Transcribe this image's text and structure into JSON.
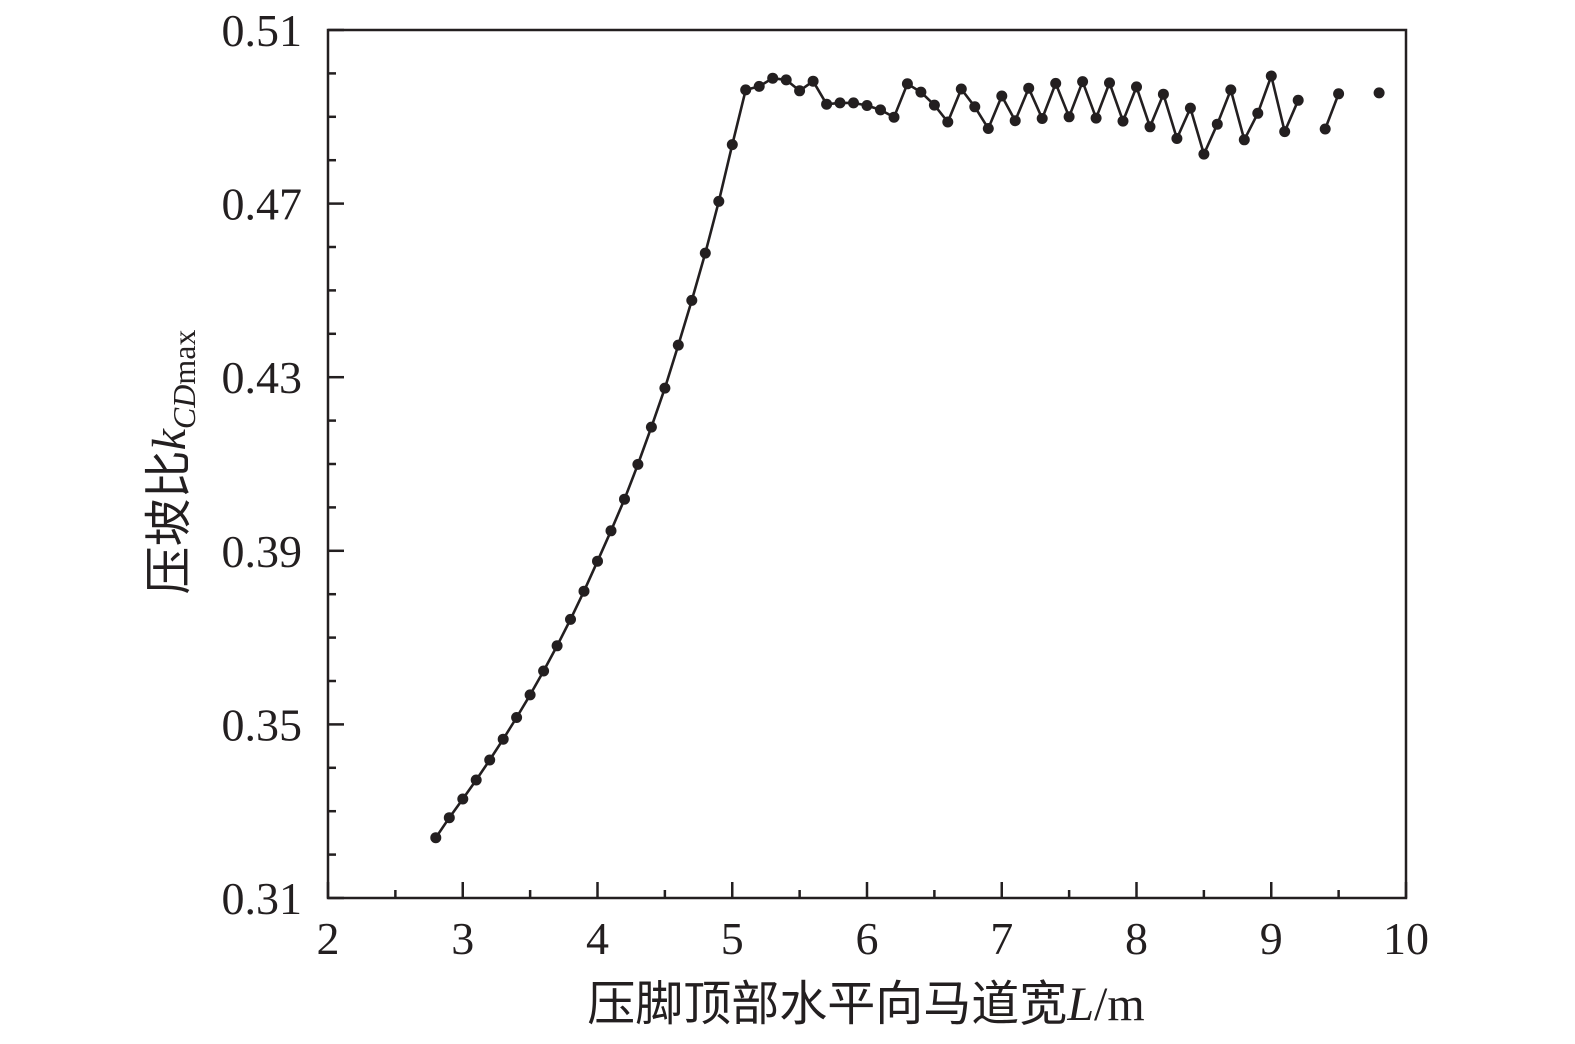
{
  "chart_data": {
    "type": "line",
    "xlabel": {
      "prefix": "压脚顶部水平向马道宽",
      "var": "L",
      "suffix": "/m"
    },
    "ylabel": {
      "prefix": "压坡比",
      "var": "k",
      "sub": "CD",
      "sub2": "max"
    },
    "xlim": [
      2,
      10
    ],
    "ylim": [
      0.31,
      0.51
    ],
    "xticks": [
      2,
      3,
      4,
      5,
      6,
      7,
      8,
      9,
      10
    ],
    "xtick_labels": [
      "2",
      "3",
      "4",
      "5",
      "6",
      "7",
      "8",
      "9",
      "10"
    ],
    "yticks": [
      0.31,
      0.35,
      0.39,
      0.43,
      0.47,
      0.51
    ],
    "ytick_labels": [
      "0.31",
      "0.35",
      "0.39",
      "0.43",
      "0.47",
      "0.51"
    ],
    "grid": false,
    "legend": "none",
    "color": "#231f20",
    "series": [
      {
        "segments": [
          {
            "x": [
              2.8,
              2.9,
              3.0,
              3.1,
              3.2,
              3.3,
              3.4,
              3.5,
              3.6,
              3.7,
              3.8,
              3.9,
              4.0,
              4.1,
              4.2,
              4.3,
              4.4,
              4.5,
              4.6,
              4.7,
              4.8,
              4.9,
              5.0,
              5.1,
              5.2,
              5.3,
              5.4,
              5.5,
              5.6,
              5.7,
              5.8,
              5.9,
              6.0,
              6.1,
              6.2,
              6.3,
              6.4,
              6.5,
              6.6,
              6.7,
              6.8,
              6.9,
              7.0,
              7.1,
              7.2,
              7.3,
              7.4,
              7.5,
              7.6,
              7.7,
              7.8,
              7.9,
              8.0,
              8.1,
              8.2,
              8.3,
              8.4,
              8.5,
              8.6,
              8.7,
              8.8,
              8.9,
              9.0,
              9.1,
              9.2
            ],
            "y": [
              0.3239,
              0.3285,
              0.3328,
              0.3372,
              0.3418,
              0.3466,
              0.3516,
              0.3568,
              0.3623,
              0.3681,
              0.3742,
              0.3807,
              0.3876,
              0.3946,
              0.4019,
              0.4099,
              0.4185,
              0.4275,
              0.4374,
              0.4477,
              0.4586,
              0.4705,
              0.4836,
              0.4962,
              0.497,
              0.4989,
              0.4985,
              0.496,
              0.4982,
              0.4929,
              0.4932,
              0.4932,
              0.4926,
              0.4916,
              0.4899,
              0.4976,
              0.4957,
              0.4927,
              0.4888,
              0.4964,
              0.4923,
              0.4873,
              0.4948,
              0.4891,
              0.4966,
              0.4896,
              0.4977,
              0.49,
              0.4981,
              0.4897,
              0.4978,
              0.489,
              0.4969,
              0.4877,
              0.4952,
              0.485,
              0.492,
              0.4814,
              0.4883,
              0.4962,
              0.4847,
              0.4908,
              0.4994,
              0.4866,
              0.4938
            ]
          },
          {
            "x": [
              9.4,
              9.5
            ],
            "y": [
              0.4872,
              0.4953
            ]
          },
          {
            "x": [
              9.8
            ],
            "y": [
              0.4955
            ]
          }
        ]
      }
    ]
  }
}
